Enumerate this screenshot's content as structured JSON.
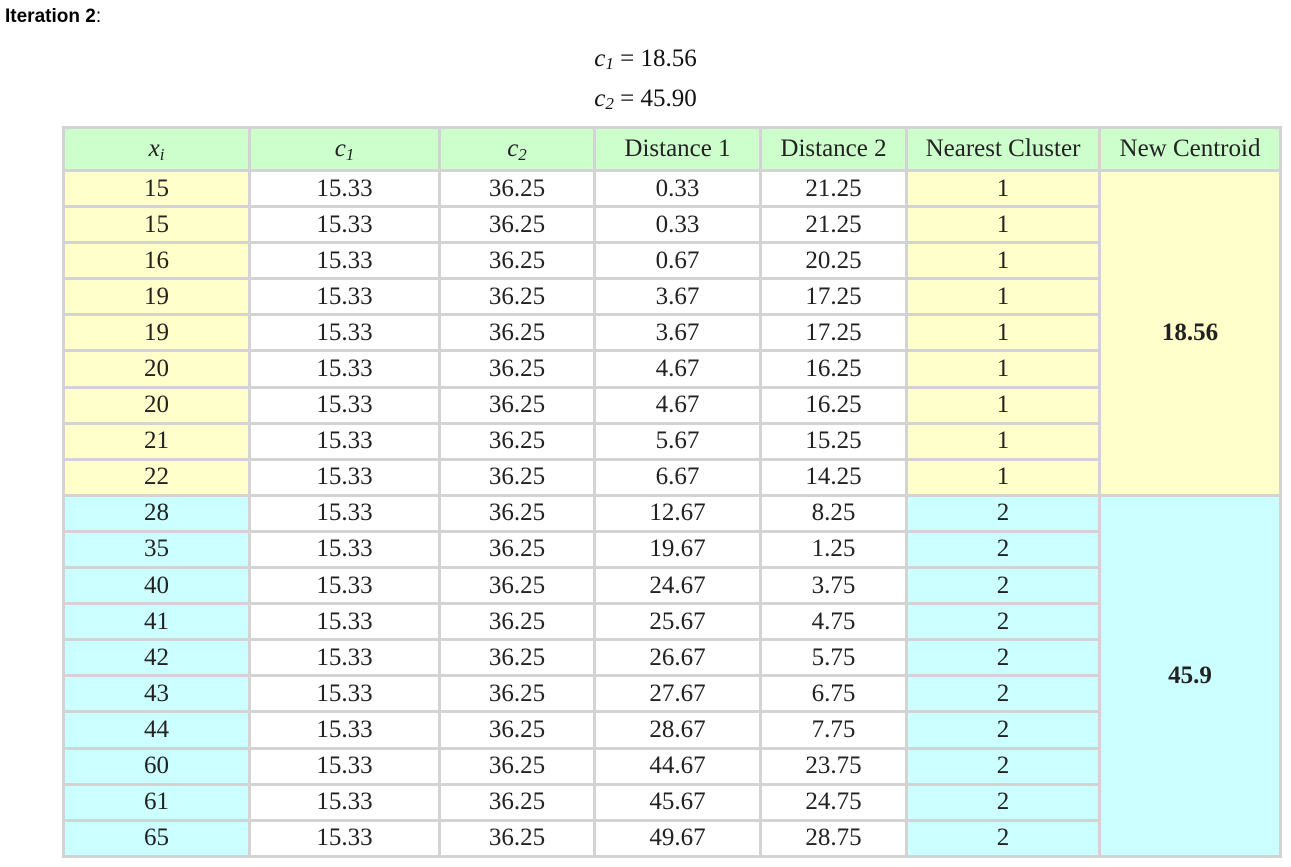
{
  "heading": {
    "label": "Iteration 2",
    "suffix": ":"
  },
  "centroids": {
    "c1": {
      "symbol": "c",
      "sub": "1",
      "eq": "= 18.56"
    },
    "c2": {
      "symbol": "c",
      "sub": "2",
      "eq": "= 45.90"
    }
  },
  "table": {
    "headers": {
      "x": {
        "symbol": "x",
        "sub": "i"
      },
      "c1": {
        "symbol": "c",
        "sub": "1"
      },
      "c2": {
        "symbol": "c",
        "sub": "2"
      },
      "d1": "Distance 1",
      "d2": "Distance 2",
      "nearest": "Nearest Cluster",
      "newc": "New Centroid"
    },
    "rows": [
      {
        "x": "15",
        "c1": "15.33",
        "c2": "36.25",
        "d1": "0.33",
        "d2": "21.25",
        "cluster": "1"
      },
      {
        "x": "15",
        "c1": "15.33",
        "c2": "36.25",
        "d1": "0.33",
        "d2": "21.25",
        "cluster": "1"
      },
      {
        "x": "16",
        "c1": "15.33",
        "c2": "36.25",
        "d1": "0.67",
        "d2": "20.25",
        "cluster": "1"
      },
      {
        "x": "19",
        "c1": "15.33",
        "c2": "36.25",
        "d1": "3.67",
        "d2": "17.25",
        "cluster": "1"
      },
      {
        "x": "19",
        "c1": "15.33",
        "c2": "36.25",
        "d1": "3.67",
        "d2": "17.25",
        "cluster": "1"
      },
      {
        "x": "20",
        "c1": "15.33",
        "c2": "36.25",
        "d1": "4.67",
        "d2": "16.25",
        "cluster": "1"
      },
      {
        "x": "20",
        "c1": "15.33",
        "c2": "36.25",
        "d1": "4.67",
        "d2": "16.25",
        "cluster": "1"
      },
      {
        "x": "21",
        "c1": "15.33",
        "c2": "36.25",
        "d1": "5.67",
        "d2": "15.25",
        "cluster": "1"
      },
      {
        "x": "22",
        "c1": "15.33",
        "c2": "36.25",
        "d1": "6.67",
        "d2": "14.25",
        "cluster": "1"
      },
      {
        "x": "28",
        "c1": "15.33",
        "c2": "36.25",
        "d1": "12.67",
        "d2": "8.25",
        "cluster": "2"
      },
      {
        "x": "35",
        "c1": "15.33",
        "c2": "36.25",
        "d1": "19.67",
        "d2": "1.25",
        "cluster": "2"
      },
      {
        "x": "40",
        "c1": "15.33",
        "c2": "36.25",
        "d1": "24.67",
        "d2": "3.75",
        "cluster": "2"
      },
      {
        "x": "41",
        "c1": "15.33",
        "c2": "36.25",
        "d1": "25.67",
        "d2": "4.75",
        "cluster": "2"
      },
      {
        "x": "42",
        "c1": "15.33",
        "c2": "36.25",
        "d1": "26.67",
        "d2": "5.75",
        "cluster": "2"
      },
      {
        "x": "43",
        "c1": "15.33",
        "c2": "36.25",
        "d1": "27.67",
        "d2": "6.75",
        "cluster": "2"
      },
      {
        "x": "44",
        "c1": "15.33",
        "c2": "36.25",
        "d1": "28.67",
        "d2": "7.75",
        "cluster": "2"
      },
      {
        "x": "60",
        "c1": "15.33",
        "c2": "36.25",
        "d1": "44.67",
        "d2": "23.75",
        "cluster": "2"
      },
      {
        "x": "61",
        "c1": "15.33",
        "c2": "36.25",
        "d1": "45.67",
        "d2": "24.75",
        "cluster": "2"
      },
      {
        "x": "65",
        "c1": "15.33",
        "c2": "36.25",
        "d1": "49.67",
        "d2": "28.75",
        "cluster": "2"
      }
    ],
    "new_centroids": [
      "18.56",
      "45.9"
    ]
  },
  "colors": {
    "header_bg": "#ccffcc",
    "cluster1_bg": "#ffffcc",
    "cluster2_bg": "#ccffff",
    "grid": "#d3d3d3"
  }
}
